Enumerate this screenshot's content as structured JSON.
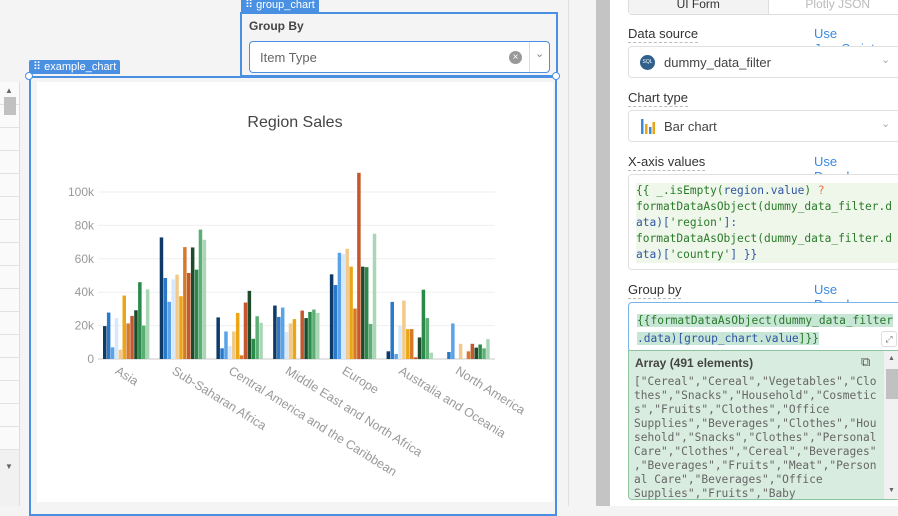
{
  "canvas": {
    "example_chart_tag": "example_chart",
    "group_chart_tag": "group_chart",
    "group_by": {
      "label": "Group By",
      "value": "Item Type"
    }
  },
  "chart_data": {
    "type": "bar",
    "title": "Region Sales",
    "categories": [
      "Asia",
      "Sub-Saharan Africa",
      "Central America and the Caribbean",
      "Middle East and North Africa",
      "Europe",
      "Australia and Oceania",
      "North America"
    ],
    "yticks": [
      "0",
      "20k",
      "40k",
      "60k",
      "80k",
      "100k"
    ],
    "ylim": [
      0,
      115000
    ],
    "grid": true,
    "colors": [
      "#0d3a66",
      "#2a78c8",
      "#5aa3e8",
      "#d6e8fa",
      "#f2c98a",
      "#eaa614",
      "#d67a2a",
      "#c4582c",
      "#1f4a2c",
      "#2a8a4a",
      "#5cae74",
      "#aad6b6"
    ],
    "series": [
      {
        "values": [
          19700,
          72800,
          24900,
          32000,
          50700,
          4600,
          0
        ]
      },
      {
        "values": [
          27800,
          48500,
          6400,
          25200,
          44300,
          34200,
          4200
        ]
      },
      {
        "values": [
          7000,
          34200,
          16500,
          30800,
          63600,
          3000,
          21300
        ]
      },
      {
        "values": [
          24500,
          47700,
          7800,
          16100,
          62800,
          19900,
          0
        ]
      },
      {
        "values": [
          5600,
          50500,
          16500,
          21300,
          66000,
          35000,
          9100
        ]
      },
      {
        "values": [
          38000,
          37600,
          27600,
          23900,
          55300,
          17900,
          0
        ]
      },
      {
        "values": [
          21300,
          67000,
          2200,
          0,
          30200,
          17900,
          4600
        ]
      },
      {
        "values": [
          25800,
          51500,
          33800,
          29000,
          111500,
          1000,
          9100
        ]
      },
      {
        "values": [
          29200,
          66800,
          40800,
          24500,
          55300,
          12900,
          6800
        ]
      },
      {
        "values": [
          46000,
          53500,
          12100,
          28200,
          55000,
          41500,
          8700
        ]
      },
      {
        "values": [
          20000,
          77500,
          25600,
          29600,
          21000,
          24500,
          6400
        ]
      },
      {
        "values": [
          41700,
          71400,
          21700,
          27600,
          75000,
          3800,
          11900
        ]
      }
    ]
  },
  "panel": {
    "tabs": [
      "UI Form",
      "Plotly JSON"
    ],
    "data_source": {
      "label": "Data source",
      "link": "Use JavaScript",
      "value": "dummy_data_filter",
      "icon": "sql-icon"
    },
    "chart_type": {
      "label": "Chart type",
      "value": "Bar chart",
      "icon": "bar-chart-icon"
    },
    "x_axis": {
      "label": "X-axis values",
      "link": "Use Dropdown"
    },
    "group_by": {
      "label": "Group by",
      "link": "Use Dropdown",
      "preview_title": "Array (491 elements)",
      "preview_lines": [
        "[\"Cereal\",\"Cereal\",\"Vegetables\",\"Clo",
        "thes\",\"Snacks\",\"Household\",\"Cosmetic",
        "s\",\"Fruits\",\"Clothes\",\"Office",
        "Supplies\",\"Beverages\",\"Clothes\",\"Hou",
        "sehold\",\"Snacks\",\"Clothes\",\"Personal",
        "Care\",\"Clothes\",\"Cereal\",\"Beverages\"",
        ",\"Beverages\",\"Fruits\",\"Meat\",\"Person",
        "al Care\",\"Beverages\",\"Office",
        "Supplies\",\"Fruits\",\"Baby"
      ]
    }
  },
  "code": {
    "x1a": "{{ _.isEmpty(",
    "x1b": "region.value",
    "x1c_pre": ")",
    "x1c": "?",
    "x2": "formatDataAsObject(dummy_data_filter.d",
    "x3a": "ata)[",
    "x3b": "'region'",
    "x3c": "]:",
    "x4": "formatDataAsObject(dummy_data_filter.d",
    "x5a": "ata)[",
    "x5b": "'country'",
    "x5c": "] }}",
    "g1": "{{formatDataAsObject(dummy_data_filter",
    "g2a": ".data)[",
    "g2b": "group_chart.value",
    "g2c": "]}}"
  }
}
